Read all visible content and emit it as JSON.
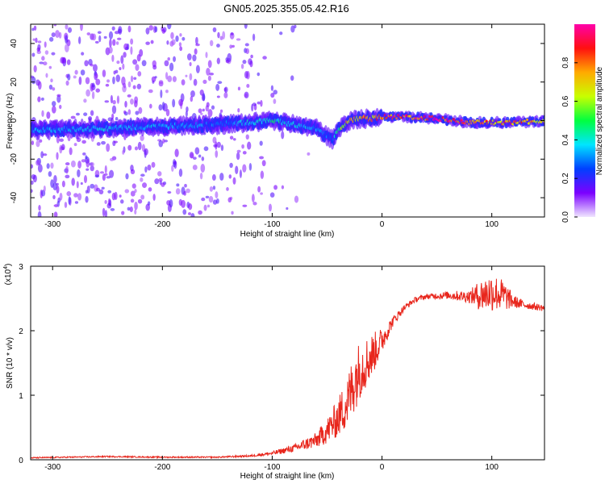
{
  "chart_data": [
    {
      "type": "heatmap",
      "title": "GN05.2025.355.05.42.R16",
      "xlabel": "Height of straight line (km)",
      "ylabel": "Frequency (Hz)",
      "xlim": [
        -320,
        148
      ],
      "ylim": [
        -50,
        50
      ],
      "xticks": [
        -300,
        -200,
        -100,
        0,
        100
      ],
      "yticks": [
        -40,
        -20,
        0,
        20,
        40
      ],
      "colorbar": {
        "label": "Normalized spectral amplitude",
        "range": [
          0.0,
          1.0
        ],
        "ticks": [
          0.0,
          0.2,
          0.4,
          0.6,
          0.8
        ],
        "tick_labels": [
          "0.0",
          "0.2",
          "0.4",
          "0.6",
          "0.8"
        ],
        "colormap": [
          "#ffffff",
          "#7b00ff",
          "#0040ff",
          "#00e5ff",
          "#00ff40",
          "#c8ff00",
          "#ffaa00",
          "#ff1010",
          "#ff00aa"
        ]
      },
      "ridge": {
        "description": "Central frequency ridge versus height",
        "x": [
          -320,
          -250,
          -200,
          -150,
          -120,
          -100,
          -80,
          -60,
          -50,
          -45,
          -40,
          -30,
          -20,
          -10,
          0,
          20,
          50,
          80,
          100,
          120,
          148
        ],
        "center_hz": [
          -5,
          -4,
          -3,
          -2,
          -1,
          0,
          -2,
          -4,
          -8,
          -10,
          -5,
          0,
          1,
          1,
          2,
          2,
          1,
          -1,
          -1,
          -1,
          0
        ],
        "amplitude": [
          0.35,
          0.4,
          0.35,
          0.3,
          0.4,
          0.45,
          0.4,
          0.35,
          0.3,
          0.3,
          0.55,
          0.75,
          0.8,
          0.8,
          0.85,
          0.9,
          0.95,
          0.85,
          0.85,
          0.85,
          0.7
        ]
      }
    },
    {
      "type": "line",
      "title": "",
      "xlabel": "Height of straight line (km)",
      "ylabel": "SNR (10 * v/v)",
      "yscale_label": "(x10",
      "yscale_exp": "4",
      "yscale_close": ")",
      "xlim": [
        -320,
        148
      ],
      "ylim": [
        0,
        3
      ],
      "xticks": [
        -300,
        -200,
        -100,
        0,
        100
      ],
      "yticks": [
        0,
        1,
        2,
        3
      ],
      "line_color": "#e8261c",
      "series": [
        {
          "name": "SNR",
          "x": [
            -320,
            -250,
            -200,
            -150,
            -120,
            -100,
            -80,
            -60,
            -50,
            -40,
            -30,
            -25,
            -20,
            -10,
            0,
            10,
            20,
            30,
            40,
            60,
            80,
            90,
            100,
            110,
            120,
            130,
            148
          ],
          "y": [
            0.03,
            0.05,
            0.04,
            0.04,
            0.06,
            0.1,
            0.18,
            0.3,
            0.45,
            0.65,
            0.95,
            1.25,
            1.4,
            1.6,
            1.85,
            2.15,
            2.35,
            2.48,
            2.53,
            2.55,
            2.53,
            2.55,
            2.6,
            2.55,
            2.45,
            2.4,
            2.35
          ],
          "noise": [
            0.01,
            0.01,
            0.01,
            0.01,
            0.015,
            0.03,
            0.06,
            0.12,
            0.2,
            0.3,
            0.45,
            0.5,
            0.45,
            0.35,
            0.2,
            0.08,
            0.05,
            0.04,
            0.04,
            0.06,
            0.1,
            0.25,
            0.3,
            0.25,
            0.1,
            0.06,
            0.05
          ]
        }
      ]
    }
  ]
}
